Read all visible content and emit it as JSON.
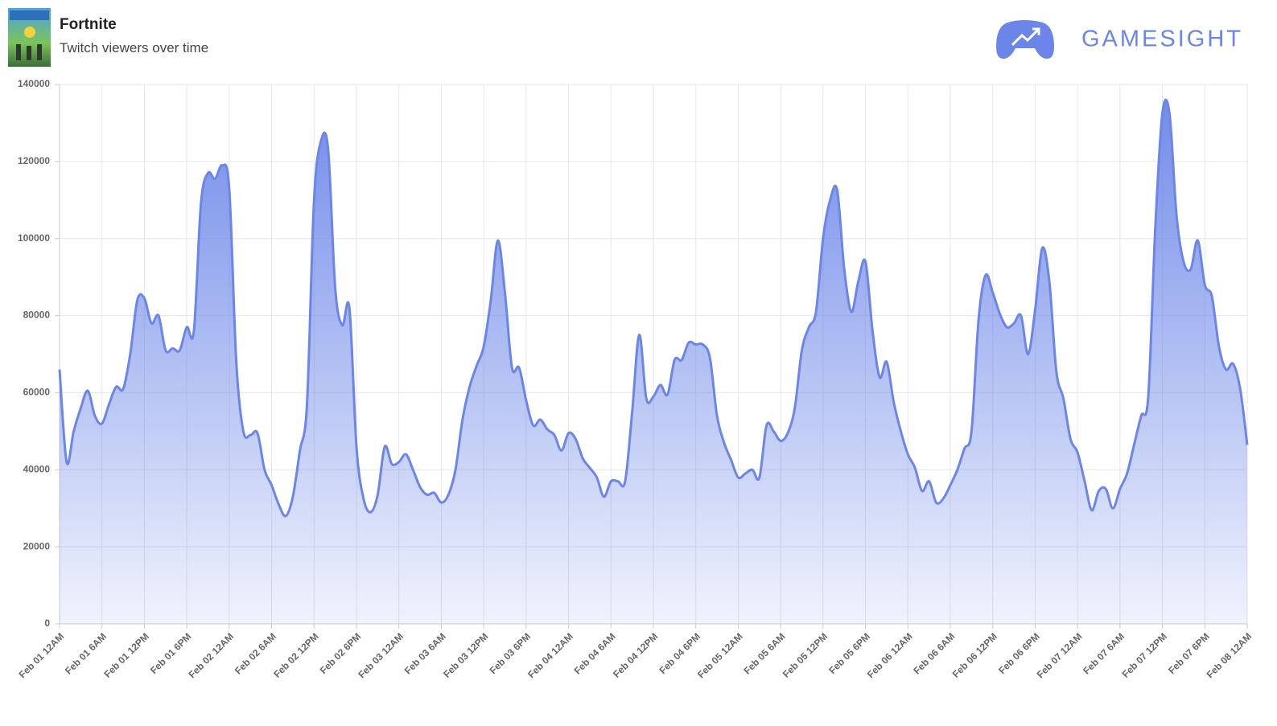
{
  "brand": "GAMESIGHT",
  "chart_data": {
    "type": "area",
    "title": "Fortnite",
    "subtitle": "Twitch viewers over time",
    "color": "#6b86e8",
    "grid": true,
    "xlim": [
      0,
      168
    ],
    "xticks": [
      {
        "value": 0,
        "label": "Feb 01 12AM"
      },
      {
        "value": 6,
        "label": "Feb 01 6AM"
      },
      {
        "value": 12,
        "label": "Feb 01 12PM"
      },
      {
        "value": 18,
        "label": "Feb 01 6PM"
      },
      {
        "value": 24,
        "label": "Feb 02 12AM"
      },
      {
        "value": 30,
        "label": "Feb 02 6AM"
      },
      {
        "value": 36,
        "label": "Feb 02 12PM"
      },
      {
        "value": 42,
        "label": "Feb 02 6PM"
      },
      {
        "value": 48,
        "label": "Feb 03 12AM"
      },
      {
        "value": 54,
        "label": "Feb 03 6AM"
      },
      {
        "value": 60,
        "label": "Feb 03 12PM"
      },
      {
        "value": 66,
        "label": "Feb 03 6PM"
      },
      {
        "value": 72,
        "label": "Feb 04 12AM"
      },
      {
        "value": 78,
        "label": "Feb 04 6AM"
      },
      {
        "value": 84,
        "label": "Feb 04 12PM"
      },
      {
        "value": 90,
        "label": "Feb 04 6PM"
      },
      {
        "value": 96,
        "label": "Feb 05 12AM"
      },
      {
        "value": 102,
        "label": "Feb 05 6AM"
      },
      {
        "value": 108,
        "label": "Feb 05 12PM"
      },
      {
        "value": 114,
        "label": "Feb 05 6PM"
      },
      {
        "value": 120,
        "label": "Feb 06 12AM"
      },
      {
        "value": 126,
        "label": "Feb 06 6AM"
      },
      {
        "value": 132,
        "label": "Feb 06 12PM"
      },
      {
        "value": 138,
        "label": "Feb 06 6PM"
      },
      {
        "value": 144,
        "label": "Feb 07 12AM"
      },
      {
        "value": 150,
        "label": "Feb 07 6AM"
      },
      {
        "value": 156,
        "label": "Feb 07 12PM"
      },
      {
        "value": 162,
        "label": "Feb 07 6PM"
      },
      {
        "value": 168,
        "label": "Feb 08 12AM"
      }
    ],
    "ylim": [
      0,
      140000
    ],
    "yticks": [
      0,
      20000,
      40000,
      60000,
      80000,
      100000,
      120000,
      140000
    ],
    "x": [
      0,
      1,
      2,
      3,
      4,
      5,
      6,
      7,
      8,
      9,
      10,
      11,
      12,
      13,
      14,
      15,
      16,
      17,
      18,
      19,
      20,
      21,
      22,
      23,
      24,
      25,
      26,
      27,
      28,
      29,
      30,
      31,
      32,
      33,
      34,
      35,
      36,
      37,
      38,
      39,
      40,
      41,
      42,
      43,
      44,
      45,
      46,
      47,
      48,
      49,
      50,
      51,
      52,
      53,
      54,
      55,
      56,
      57,
      58,
      59,
      60,
      61,
      62,
      63,
      64,
      65,
      66,
      67,
      68,
      69,
      70,
      71,
      72,
      73,
      74,
      75,
      76,
      77,
      78,
      79,
      80,
      81,
      82,
      83,
      84,
      85,
      86,
      87,
      88,
      89,
      90,
      91,
      92,
      93,
      94,
      95,
      96,
      97,
      98,
      99,
      100,
      101,
      102,
      103,
      104,
      105,
      106,
      107,
      108,
      109,
      110,
      111,
      112,
      113,
      114,
      115,
      116,
      117,
      118,
      119,
      120,
      121,
      122,
      123,
      124,
      125,
      126,
      127,
      128,
      129,
      130,
      131,
      132,
      133,
      134,
      135,
      136,
      137,
      138,
      139,
      140,
      141,
      142,
      143,
      144,
      145,
      146,
      147,
      148,
      149,
      150,
      151,
      152,
      153,
      154,
      155,
      156,
      157,
      158,
      159,
      160,
      161,
      162,
      163,
      164,
      165,
      166,
      167,
      168
    ],
    "values": [
      66000,
      42000,
      50000,
      56000,
      60500,
      54000,
      52000,
      57000,
      61500,
      61000,
      70000,
      84000,
      84500,
      78000,
      80000,
      71000,
      71500,
      71000,
      77000,
      76000,
      109000,
      117000,
      115500,
      119000,
      113000,
      68000,
      50000,
      49000,
      49500,
      40000,
      36000,
      31000,
      28000,
      33000,
      45000,
      57000,
      110000,
      125500,
      123000,
      87000,
      77500,
      82000,
      46000,
      32500,
      29000,
      33500,
      46000,
      41500,
      42000,
      44000,
      40000,
      35500,
      33500,
      34000,
      31500,
      33500,
      40000,
      53000,
      61500,
      67000,
      72000,
      84000,
      99500,
      86000,
      66500,
      66500,
      58000,
      51500,
      53000,
      50500,
      49000,
      45000,
      49500,
      48000,
      43000,
      40500,
      38000,
      33000,
      37000,
      37000,
      37000,
      55000,
      75000,
      58500,
      59000,
      62000,
      59500,
      68500,
      68500,
      73000,
      72500,
      72500,
      69000,
      54000,
      47000,
      42500,
      38000,
      39000,
      40000,
      38000,
      51500,
      50000,
      47500,
      49500,
      56000,
      71000,
      77000,
      81000,
      100000,
      110000,
      112500,
      92000,
      81000,
      89000,
      94000,
      76000,
      64000,
      68000,
      57500,
      50000,
      44000,
      40500,
      34500,
      37000,
      31500,
      32500,
      36000,
      40000,
      45500,
      50000,
      79000,
      90500,
      86000,
      80500,
      77000,
      78000,
      80000,
      70000,
      81500,
      97500,
      89000,
      65500,
      58500,
      48000,
      44500,
      37000,
      29500,
      34500,
      35000,
      30000,
      35000,
      39000,
      46500,
      54000,
      59000,
      103000,
      132500,
      132500,
      106000,
      94000,
      92000,
      99500,
      88000,
      85000,
      72000,
      66000,
      67500,
      61000,
      46500
    ]
  }
}
